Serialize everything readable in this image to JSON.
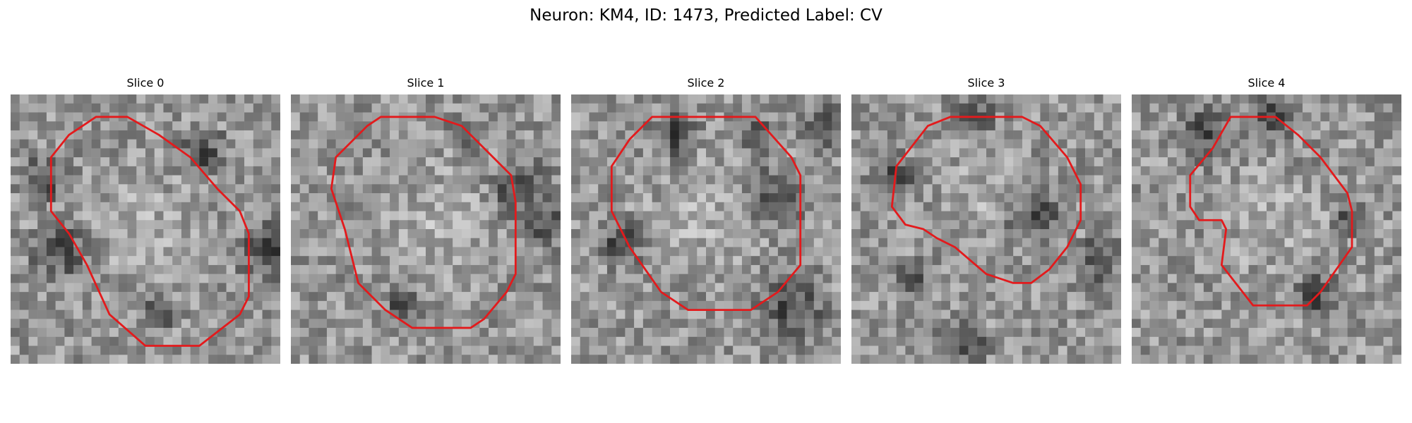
{
  "figure": {
    "title": "Neuron: KM4, ID: 1473, Predicted Label: CV"
  },
  "contour_color": "#e31a1c",
  "colormap": "grayscale",
  "slices": [
    {
      "label": "Slice 0",
      "seed": 17,
      "contour": [
        [
          6.5,
          4.5
        ],
        [
          9.5,
          2.5
        ],
        [
          13,
          2.5
        ],
        [
          16.5,
          4.5
        ],
        [
          20,
          7
        ],
        [
          23,
          10.5
        ],
        [
          25.5,
          13
        ],
        [
          26.5,
          15.5
        ],
        [
          26.5,
          22.5
        ],
        [
          25.5,
          24.5
        ],
        [
          21,
          28
        ],
        [
          15,
          28
        ],
        [
          11,
          24.5
        ],
        [
          8.5,
          19
        ],
        [
          6.5,
          15.5
        ],
        [
          4.5,
          13
        ],
        [
          4.5,
          7
        ]
      ],
      "dark_blobs": [
        [
          28,
          17,
          2.5
        ],
        [
          3,
          9,
          2
        ],
        [
          5,
          17,
          2.5
        ],
        [
          21,
          6,
          2
        ],
        [
          16,
          24,
          1.5
        ]
      ],
      "light_center": [
        15,
        15,
        9
      ]
    },
    {
      "label": "Slice 1",
      "seed": 29,
      "contour": [
        [
          8.5,
          3.5
        ],
        [
          10,
          2.5
        ],
        [
          16,
          2.5
        ],
        [
          19,
          3.5
        ],
        [
          22.5,
          7
        ],
        [
          24.5,
          9
        ],
        [
          25,
          12
        ],
        [
          25,
          20
        ],
        [
          24,
          22
        ],
        [
          21.5,
          25
        ],
        [
          20,
          26
        ],
        [
          13.5,
          26
        ],
        [
          10.5,
          24
        ],
        [
          7.5,
          21
        ],
        [
          6,
          15
        ],
        [
          4.5,
          10.5
        ],
        [
          5,
          7
        ]
      ],
      "dark_blobs": [
        [
          25,
          10,
          2.5
        ],
        [
          28,
          14,
          2
        ],
        [
          19,
          4,
          1.5
        ],
        [
          12,
          23,
          1.5
        ]
      ],
      "light_center": [
        15,
        14,
        10
      ]
    },
    {
      "label": "Slice 2",
      "seed": 43,
      "contour": [
        [
          9,
          2.5
        ],
        [
          20.5,
          2.5
        ],
        [
          24.5,
          7
        ],
        [
          25.5,
          9
        ],
        [
          25.5,
          19
        ],
        [
          23,
          22
        ],
        [
          20,
          24
        ],
        [
          13,
          24
        ],
        [
          10,
          22
        ],
        [
          6.5,
          17
        ],
        [
          4.5,
          13
        ],
        [
          4.5,
          8
        ],
        [
          6.5,
          5
        ]
      ],
      "dark_blobs": [
        [
          22,
          11,
          2.5
        ],
        [
          24,
          23,
          3
        ],
        [
          5,
          16,
          2
        ],
        [
          11,
          4,
          2
        ],
        [
          28,
          3,
          2
        ],
        [
          20,
          4,
          1.5
        ]
      ],
      "light_center": [
        14,
        13,
        9
      ]
    },
    {
      "label": "Slice 3",
      "seed": 71,
      "contour": [
        [
          8.5,
          3.5
        ],
        [
          11,
          2.5
        ],
        [
          19,
          2.5
        ],
        [
          21,
          3.5
        ],
        [
          24,
          7
        ],
        [
          25.5,
          10
        ],
        [
          25.5,
          14
        ],
        [
          24,
          17
        ],
        [
          22,
          19.5
        ],
        [
          20,
          21
        ],
        [
          18,
          21
        ],
        [
          15,
          20
        ],
        [
          11.5,
          17
        ],
        [
          9.5,
          16
        ],
        [
          8,
          15
        ],
        [
          6,
          14.5
        ],
        [
          4.5,
          12.5
        ],
        [
          5,
          8
        ]
      ],
      "dark_blobs": [
        [
          20,
          13,
          2.5
        ],
        [
          4,
          9,
          2
        ],
        [
          13,
          2,
          2
        ],
        [
          27,
          18,
          2
        ],
        [
          12,
          27,
          2
        ],
        [
          6,
          20,
          1.5
        ]
      ],
      "light_center": [
        14,
        10,
        7
      ]
    },
    {
      "label": "Slice 4",
      "seed": 97,
      "contour": [
        [
          11,
          2.5
        ],
        [
          16,
          2.5
        ],
        [
          18.5,
          4.5
        ],
        [
          21,
          7
        ],
        [
          24,
          11
        ],
        [
          24.5,
          13
        ],
        [
          24.5,
          17
        ],
        [
          21,
          22
        ],
        [
          19.5,
          23.5
        ],
        [
          13.5,
          23.5
        ],
        [
          10,
          19
        ],
        [
          10.5,
          15
        ],
        [
          10,
          14
        ],
        [
          7.5,
          14
        ],
        [
          6.5,
          12.5
        ],
        [
          6.5,
          9
        ],
        [
          9,
          6
        ]
      ],
      "dark_blobs": [
        [
          8,
          4,
          2.5
        ],
        [
          15,
          2,
          2
        ],
        [
          20,
          22,
          2
        ],
        [
          24,
          13,
          1.5
        ]
      ],
      "light_center": [
        15,
        14,
        8
      ]
    }
  ]
}
